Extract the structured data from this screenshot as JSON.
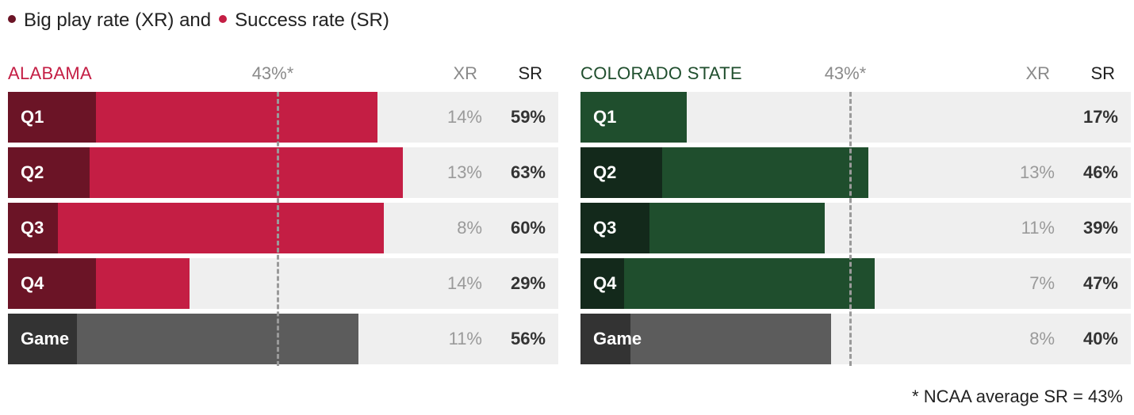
{
  "legend": {
    "xr_label": "Big play rate (XR) and",
    "sr_label": "Success rate (SR)",
    "xr_color": "#6b1426",
    "sr_color": "#c41e44"
  },
  "footnote": "* NCAA average SR = 43%",
  "chart_data": [
    {
      "type": "bar",
      "title": "ALABAMA",
      "average_label": "43%*",
      "average_sr": 43,
      "col_xr": "XR",
      "col_sr": "SR",
      "colors": {
        "xr": "#6b1426",
        "sr": "#c41e44",
        "game_xr": "#333333",
        "game_sr": "#5c5c5c",
        "title": "#c41e44"
      },
      "categories": [
        "Q1",
        "Q2",
        "Q3",
        "Q4",
        "Game"
      ],
      "series": [
        {
          "name": "XR",
          "values": [
            14,
            13,
            8,
            14,
            11
          ],
          "labels": [
            "14%",
            "13%",
            "8%",
            "14%",
            "11%"
          ]
        },
        {
          "name": "SR",
          "values": [
            59,
            63,
            60,
            29,
            56
          ],
          "labels": [
            "59%",
            "63%",
            "60%",
            "29%",
            "56%"
          ]
        }
      ]
    },
    {
      "type": "bar",
      "title": "COLORADO STATE",
      "average_label": "43%*",
      "average_sr": 43,
      "col_xr": "XR",
      "col_sr": "SR",
      "colors": {
        "xr": "#13291b",
        "sr": "#1f4e2d",
        "game_xr": "#333333",
        "game_sr": "#5c5c5c",
        "title": "#1f4e2d"
      },
      "categories": [
        "Q1",
        "Q2",
        "Q3",
        "Q4",
        "Game"
      ],
      "series": [
        {
          "name": "XR",
          "values": [
            0,
            13,
            11,
            7,
            8
          ],
          "labels": [
            "",
            "13%",
            "11%",
            "7%",
            "8%"
          ]
        },
        {
          "name": "SR",
          "values": [
            17,
            46,
            39,
            47,
            40
          ],
          "labels": [
            "17%",
            "46%",
            "39%",
            "47%",
            "40%"
          ]
        }
      ]
    }
  ]
}
